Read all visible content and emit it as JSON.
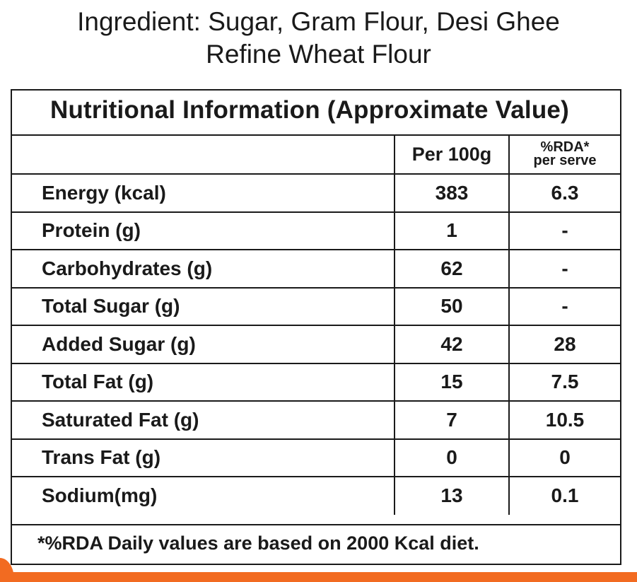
{
  "ingredients": {
    "line1": "Ingredient: Sugar, Gram Flour, Desi Ghee",
    "line2": "Refine Wheat Flour"
  },
  "panel": {
    "title": "Nutritional Information (Approximate Value)",
    "header": {
      "nutrient": "",
      "per_100g": "Per 100g",
      "rda_line1": "%RDA*",
      "rda_line2": "per serve"
    },
    "rows": [
      {
        "nutrient": "Energy (kcal)",
        "per_100g": "383",
        "rda": "6.3"
      },
      {
        "nutrient": "Protein (g)",
        "per_100g": "1",
        "rda": "-"
      },
      {
        "nutrient": "Carbohydrates (g)",
        "per_100g": "62",
        "rda": "-"
      },
      {
        "nutrient": "Total Sugar (g)",
        "per_100g": "50",
        "rda": "-"
      },
      {
        "nutrient": "Added Sugar (g)",
        "per_100g": "42",
        "rda": "28"
      },
      {
        "nutrient": "Total Fat (g)",
        "per_100g": "15",
        "rda": "7.5"
      },
      {
        "nutrient": "Saturated Fat (g)",
        "per_100g": "7",
        "rda": "10.5"
      },
      {
        "nutrient": "Trans Fat (g)",
        "per_100g": "0",
        "rda": "0"
      },
      {
        "nutrient": "Sodium(mg)",
        "per_100g": "13",
        "rda": "0.1"
      }
    ],
    "footnote": "*%RDA Daily values are based on 2000 Kcal diet."
  },
  "colors": {
    "accent_strip": "#f26b21",
    "text": "#1a1a1a",
    "border": "#1a1a1a"
  }
}
